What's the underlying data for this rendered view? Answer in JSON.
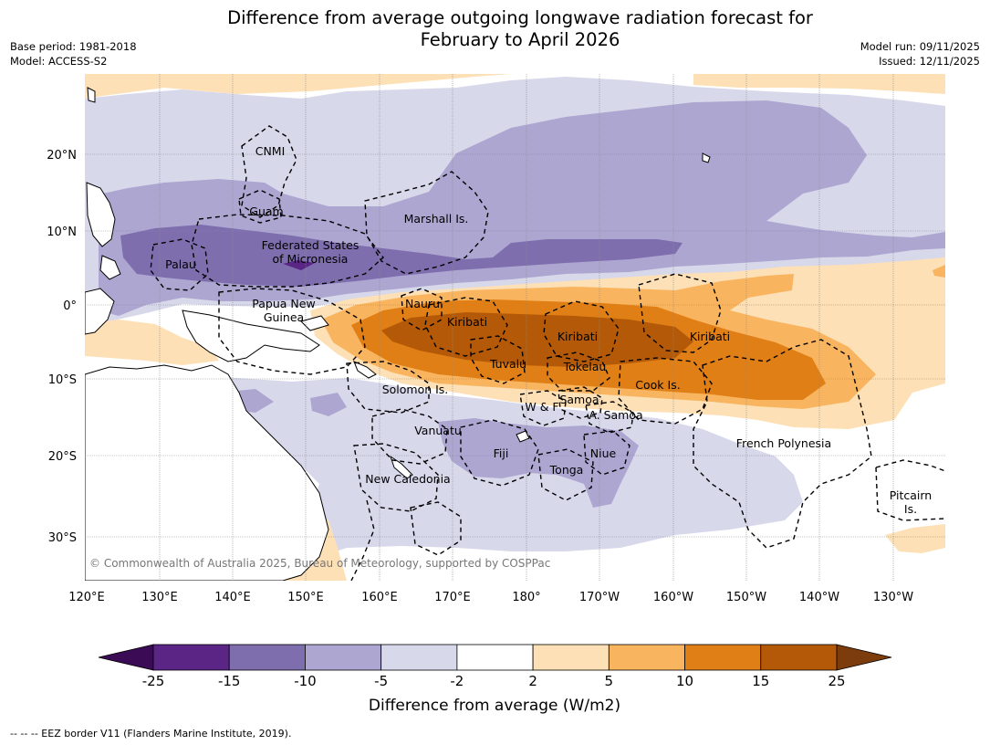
{
  "header": {
    "title_line1": "Difference from average outgoing longwave radiation forecast for",
    "title_line2": "February to April 2026",
    "base_period": "Base period: 1981-2018",
    "model": "Model: ACCESS-S2",
    "model_run": "Model run: 09/11/2025",
    "issued": "Issued: 12/11/2025"
  },
  "axes": {
    "lon_labels": [
      "120°E",
      "130°E",
      "140°E",
      "150°E",
      "160°E",
      "170°E",
      "180°",
      "170°W",
      "160°W",
      "150°W",
      "140°W",
      "130°W"
    ],
    "lat_labels": [
      "20°N",
      "10°N",
      "0°",
      "10°S",
      "20°S",
      "30°S"
    ]
  },
  "regions": {
    "cnmi": "CNMI",
    "guam": "Guam",
    "marshall": "Marshall Is.",
    "fsm1": "Federated States",
    "fsm2": "of Micronesia",
    "palau": "Palau",
    "png1": "Papua New",
    "png2": "Guinea",
    "nauru": "Nauru",
    "kiribati_w": "Kiribati",
    "kiribati_c": "Kiribati",
    "kiribati_e": "Kiribati",
    "tuvalu": "Tuvalu",
    "tokelau": "Tokelau",
    "cook": "Cook Is.",
    "solomon": "Solomon Is.",
    "wf": "W & F",
    "samoa": "Samoa",
    "asamoa": "A. Samoa",
    "vanuatu": "Vanuatu",
    "fiji": "Fiji",
    "niue": "Niue",
    "tonga": "Tonga",
    "newcal": "New Caledonia",
    "frpoly": "French Polynesia",
    "pitcairn1": "Pitcairn",
    "pitcairn2": "Is."
  },
  "copyright": "© Commonwealth of Australia 2025, Bureau of Meteorology, supported by COSPPac",
  "colorbar": {
    "ticks": [
      "-25",
      "-15",
      "-10",
      "-5",
      "-2",
      "2",
      "5",
      "10",
      "15",
      "25"
    ],
    "colors": [
      "#5a2585",
      "#7e6eae",
      "#ada6d1",
      "#d8d8eb",
      "#ffffff",
      "#fde0b5",
      "#f9b45f",
      "#e07f16",
      "#b45907"
    ],
    "under_color": "#3b0b55",
    "over_color": "#7c3c0c",
    "title": "Difference from average (W/m2)"
  },
  "map_colors": {
    "land": "#ffffff",
    "coast": "#000000",
    "eez": "#000000"
  },
  "footer": "--  --  -- EEZ border V11 (Flanders Marine Institute, 2019)."
}
